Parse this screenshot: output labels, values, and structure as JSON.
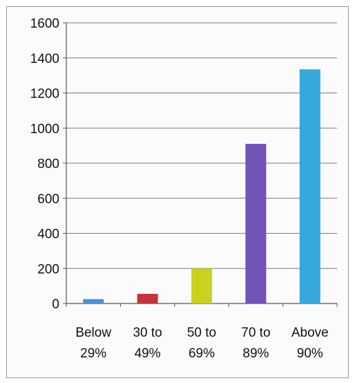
{
  "chart_data": {
    "type": "bar",
    "title": "",
    "xlabel": "",
    "ylabel": "",
    "categories": [
      [
        "Below",
        "29%"
      ],
      [
        "30 to",
        "49%"
      ],
      [
        "50 to",
        "69%"
      ],
      [
        "70 to",
        "89%"
      ],
      [
        "Above",
        "90%"
      ]
    ],
    "values": [
      25,
      55,
      200,
      910,
      1335
    ],
    "colors": [
      "#4a90d9",
      "#c8323a",
      "#c9d21e",
      "#7054b8",
      "#35a9dc"
    ],
    "ylim": [
      0,
      1600
    ],
    "yticks": [
      0,
      200,
      400,
      600,
      800,
      1000,
      1200,
      1400,
      1600
    ],
    "grid": true,
    "legend": "none"
  }
}
